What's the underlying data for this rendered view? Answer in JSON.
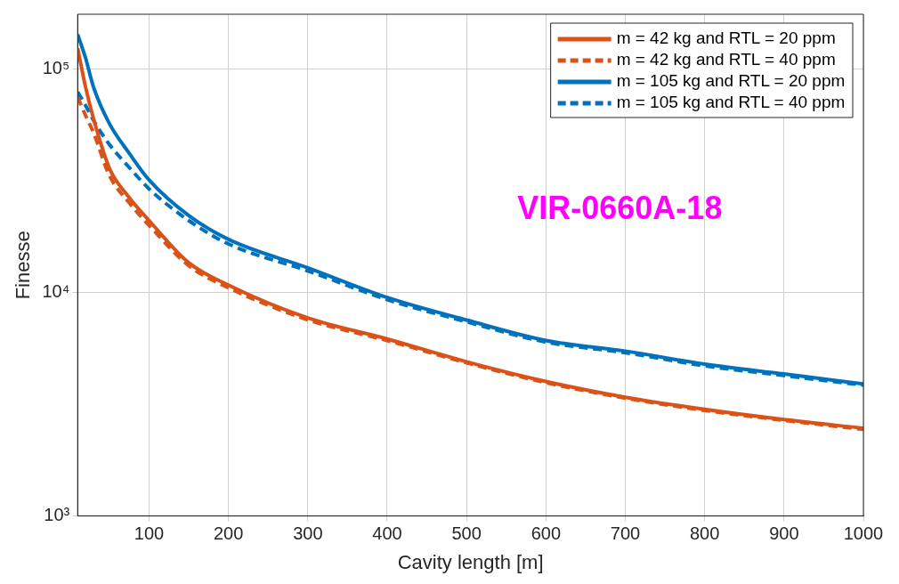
{
  "chart_data": {
    "type": "line",
    "xlabel": "Cavity length [m]",
    "ylabel": "Finesse",
    "x": [
      10,
      20,
      30,
      50,
      75,
      100,
      150,
      200,
      300,
      400,
      500,
      600,
      700,
      800,
      900,
      1000
    ],
    "series": [
      {
        "name": "m = 42 kg and RTL = 20 ppm",
        "color": "#d95319",
        "line_style": "solid",
        "values": [
          124000,
          83000,
          60000,
          36000,
          26600,
          21000,
          13600,
          10800,
          7700,
          6200,
          4900,
          4000,
          3400,
          3000,
          2700,
          2470
        ]
      },
      {
        "name": "m = 42 kg and RTL = 40 ppm",
        "color": "#d95319",
        "line_style": "dashed",
        "values": [
          75000,
          62000,
          52000,
          33400,
          25200,
          20000,
          13200,
          10500,
          7550,
          6100,
          4850,
          3950,
          3370,
          2970,
          2680,
          2440
        ]
      },
      {
        "name": "m = 105 kg and RTL = 20 ppm",
        "color": "#0072bd",
        "line_style": "solid",
        "values": [
          143000,
          112000,
          83000,
          57000,
          42000,
          31900,
          22100,
          17300,
          12900,
          9500,
          7530,
          6100,
          5470,
          4780,
          4320,
          3900
        ]
      },
      {
        "name": "m = 105 kg and RTL = 40 ppm",
        "color": "#0072bd",
        "line_style": "dashed",
        "values": [
          79000,
          68700,
          58900,
          46000,
          36300,
          29100,
          21000,
          16500,
          12500,
          9300,
          7400,
          6000,
          5380,
          4700,
          4250,
          3850
        ]
      }
    ],
    "xlim": [
      10,
      1000
    ],
    "xticks": [
      100,
      200,
      300,
      400,
      500,
      600,
      700,
      800,
      900,
      1000
    ],
    "ylim": [
      1000,
      176000
    ],
    "yticks": [
      {
        "value": 1000,
        "label": "10³"
      },
      {
        "value": 10000,
        "label": "10⁴"
      },
      {
        "value": 100000,
        "label": "10⁵"
      }
    ],
    "log": "y",
    "grid": true,
    "legend": "top right",
    "marker": "none",
    "annotations": [
      "VIR-0660A-18"
    ]
  }
}
